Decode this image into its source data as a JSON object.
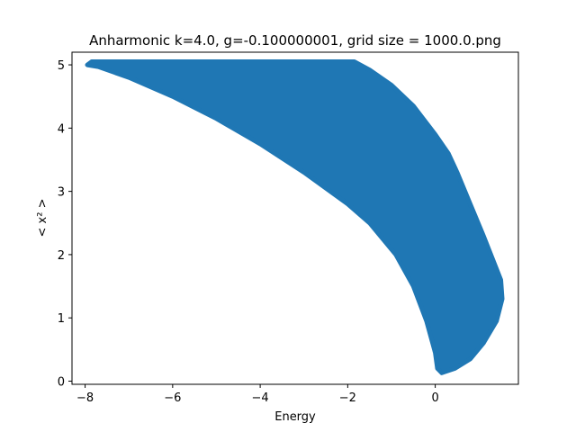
{
  "chart_data": {
    "type": "scatter",
    "title": "Anharmonic  k=4.0, g=-0.100000001, grid size = 1000.0.png",
    "xlabel": "Energy",
    "ylabel": "< x² >",
    "xlim": [
      -8.3,
      1.9
    ],
    "ylim": [
      -0.05,
      5.2
    ],
    "xticks": [
      -8,
      -6,
      -4,
      -2,
      0
    ],
    "yticks": [
      0,
      1,
      2,
      3,
      4,
      5
    ],
    "xtick_labels": [
      "−8",
      "−6",
      "−4",
      "−2",
      "0"
    ],
    "ytick_labels": [
      "0",
      "1",
      "2",
      "3",
      "4",
      "5"
    ],
    "grid": false,
    "legend": "none",
    "series": [
      {
        "color": "#1f77b4",
        "region_outline": [
          [
            -7.85,
            5.05
          ],
          [
            -1.85,
            5.05
          ],
          [
            -1.5,
            4.92
          ],
          [
            -1.0,
            4.68
          ],
          [
            -0.5,
            4.35
          ],
          [
            0.0,
            3.9
          ],
          [
            0.3,
            3.6
          ],
          [
            0.5,
            3.3
          ],
          [
            0.8,
            2.8
          ],
          [
            1.1,
            2.3
          ],
          [
            1.3,
            1.95
          ],
          [
            1.5,
            1.6
          ],
          [
            1.53,
            1.3
          ],
          [
            1.4,
            0.95
          ],
          [
            1.1,
            0.6
          ],
          [
            0.8,
            0.35
          ],
          [
            0.45,
            0.2
          ],
          [
            0.15,
            0.13
          ],
          [
            0.05,
            0.2
          ],
          [
            0.0,
            0.45
          ],
          [
            -0.2,
            0.95
          ],
          [
            -0.5,
            1.5
          ],
          [
            -0.9,
            2.0
          ],
          [
            -1.5,
            2.5
          ],
          [
            -2.0,
            2.8
          ],
          [
            -3.0,
            3.3
          ],
          [
            -4.0,
            3.75
          ],
          [
            -5.0,
            4.15
          ],
          [
            -6.0,
            4.5
          ],
          [
            -7.0,
            4.8
          ],
          [
            -7.7,
            4.97
          ],
          [
            -7.95,
            5.0
          ]
        ]
      }
    ]
  }
}
